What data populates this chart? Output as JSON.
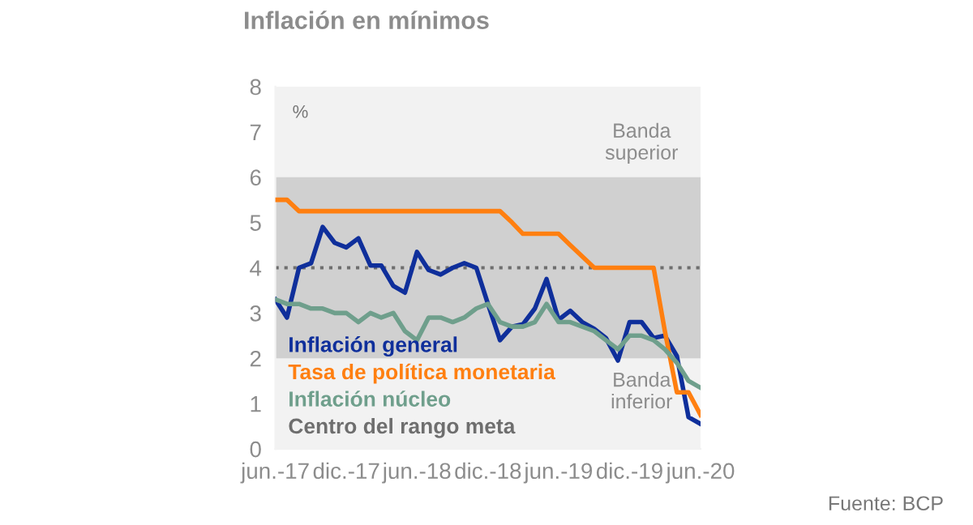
{
  "chart_data": {
    "type": "line",
    "title": "Inflación en mínimos",
    "ylabel": "%",
    "x": [
      "2017-06",
      "2017-07",
      "2017-08",
      "2017-09",
      "2017-10",
      "2017-11",
      "2017-12",
      "2018-01",
      "2018-02",
      "2018-03",
      "2018-04",
      "2018-05",
      "2018-06",
      "2018-07",
      "2018-08",
      "2018-09",
      "2018-10",
      "2018-11",
      "2018-12",
      "2019-01",
      "2019-02",
      "2019-03",
      "2019-04",
      "2019-05",
      "2019-06",
      "2019-07",
      "2019-08",
      "2019-09",
      "2019-10",
      "2019-11",
      "2019-12",
      "2020-01",
      "2020-02",
      "2020-03",
      "2020-04",
      "2020-05",
      "2020-06"
    ],
    "series": [
      {
        "name": "Inflación general",
        "color": "#0f2f9b",
        "values": [
          3.3,
          2.9,
          4.0,
          4.1,
          4.9,
          4.55,
          4.45,
          4.65,
          4.05,
          4.05,
          3.6,
          3.45,
          4.35,
          3.95,
          3.85,
          4.0,
          4.1,
          4.0,
          3.2,
          2.4,
          2.7,
          2.75,
          3.1,
          3.75,
          2.85,
          3.05,
          2.8,
          2.65,
          2.45,
          1.95,
          2.8,
          2.8,
          2.45,
          2.5,
          2.05,
          0.7,
          0.55
        ]
      },
      {
        "name": "Tasa de política monetaria",
        "color": "#ff7f10",
        "values": [
          5.5,
          5.5,
          5.25,
          5.25,
          5.25,
          5.25,
          5.25,
          5.25,
          5.25,
          5.25,
          5.25,
          5.25,
          5.25,
          5.25,
          5.25,
          5.25,
          5.25,
          5.25,
          5.25,
          5.25,
          5.0,
          4.75,
          4.75,
          4.75,
          4.75,
          4.5,
          4.25,
          4.0,
          4.0,
          4.0,
          4.0,
          4.0,
          4.0,
          2.6,
          1.25,
          1.25,
          0.75
        ]
      },
      {
        "name": "Inflación núcleo",
        "color": "#6f9f8c",
        "values": [
          3.3,
          3.2,
          3.2,
          3.1,
          3.1,
          3.0,
          3.0,
          2.8,
          3.0,
          2.9,
          3.0,
          2.6,
          2.4,
          2.9,
          2.9,
          2.8,
          2.9,
          3.1,
          3.2,
          2.8,
          2.7,
          2.7,
          2.8,
          3.2,
          2.8,
          2.8,
          2.7,
          2.6,
          2.4,
          2.2,
          2.5,
          2.5,
          2.4,
          2.2,
          1.9,
          1.5,
          1.35
        ]
      }
    ],
    "ref_lines": [
      {
        "axis": "y",
        "value": 4,
        "label": "Centro del rango meta",
        "color": "#6e6e6e",
        "line_style": "dotted"
      }
    ],
    "bands": [
      {
        "axis": "y",
        "from": 2,
        "to": 6,
        "color": "#d0d0d0"
      }
    ],
    "annotations": [
      {
        "text": "Banda\nsuperior",
        "x": "2020-01",
        "y": 6
      },
      {
        "text": "Banda\ninferior",
        "x": "2020-01",
        "y": 2
      },
      "Fuente: BCP"
    ],
    "xlim": [
      "2017-06",
      "2020-06"
    ],
    "xticks": [
      {
        "value": "2017-06",
        "label": "jun.-17"
      },
      {
        "value": "2017-12",
        "label": "dic.-17"
      },
      {
        "value": "2018-06",
        "label": "jun.-18"
      },
      {
        "value": "2018-12",
        "label": "dic.-18"
      },
      {
        "value": "2019-06",
        "label": "jun.-19"
      },
      {
        "value": "2019-12",
        "label": "dic.-19"
      },
      {
        "value": "2020-06",
        "label": "jun.-20"
      }
    ],
    "ylim": [
      0,
      8
    ],
    "yticks": [
      0,
      1,
      2,
      3,
      4,
      5,
      6,
      7,
      8
    ],
    "legend": "bottom left",
    "grid": false,
    "marker": "none",
    "line_style": "solid"
  }
}
